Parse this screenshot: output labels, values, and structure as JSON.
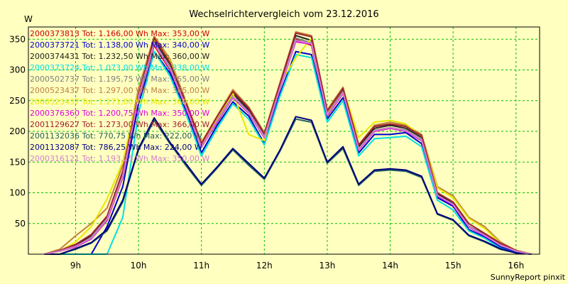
{
  "chart_data": {
    "type": "line",
    "title": "Wechselrichtervergleich vom 23.12.2016",
    "ylabel": "W",
    "xlabel": "",
    "footer": "SunnyReport pinxit",
    "ylim": [
      0,
      370
    ],
    "xlim": [
      8.25,
      16.375
    ],
    "yticks": [
      50,
      100,
      150,
      200,
      250,
      300,
      350
    ],
    "xticks": [
      {
        "value": 9,
        "label": "9h"
      },
      {
        "value": 10,
        "label": "10h"
      },
      {
        "value": 11,
        "label": "11h"
      },
      {
        "value": 12,
        "label": "12h"
      },
      {
        "value": 13,
        "label": "13h"
      },
      {
        "value": 14,
        "label": "14h"
      },
      {
        "value": 15,
        "label": "15h"
      },
      {
        "value": 16,
        "label": "16h"
      }
    ],
    "grid": true,
    "x": [
      8.5,
      8.75,
      9,
      9.25,
      9.5,
      9.75,
      10,
      10.25,
      10.5,
      10.75,
      11,
      11.25,
      11.5,
      11.75,
      12,
      12.25,
      12.5,
      12.75,
      13,
      13.25,
      13.5,
      13.75,
      14,
      14.25,
      14.5,
      14.75,
      15,
      15.25,
      15.5,
      15.75,
      16,
      16.25
    ],
    "series": [
      {
        "name": "2000373813 Tot: 1.166,00 Wh Max: 353,00 W",
        "color": "#cc0000",
        "values": [
          0,
          5,
          12,
          25,
          55,
          125,
          255,
          340,
          300,
          240,
          175,
          215,
          255,
          230,
          190,
          270,
          350,
          340,
          225,
          262,
          170,
          200,
          205,
          200,
          185,
          95,
          80,
          45,
          30,
          15,
          5,
          0
        ]
      },
      {
        "name": "2000373721 Tot: 1.138,00 Wh Max: 340,00 W",
        "color": "#0000cc",
        "values": [
          0,
          0,
          0,
          0,
          45,
          110,
          245,
          330,
          295,
          235,
          165,
          210,
          248,
          225,
          180,
          262,
          330,
          325,
          220,
          255,
          165,
          195,
          195,
          198,
          180,
          92,
          78,
          40,
          28,
          12,
          3,
          0
        ]
      },
      {
        "name": "2000374431 Tot: 1.232,50 Wh Max: 360,00 W",
        "color": "#202020",
        "values": [
          0,
          5,
          14,
          30,
          60,
          130,
          260,
          348,
          310,
          245,
          178,
          220,
          262,
          235,
          195,
          275,
          356,
          348,
          230,
          268,
          175,
          205,
          210,
          205,
          190,
          98,
          82,
          46,
          32,
          16,
          5,
          0
        ]
      },
      {
        "name": "2000373724 Tot: 1.073,00 Wh Max: 338,00 W",
        "color": "#00e0e0",
        "values": [
          0,
          0,
          0,
          0,
          0,
          60,
          230,
          330,
          290,
          230,
          160,
          205,
          245,
          220,
          178,
          258,
          325,
          320,
          215,
          250,
          160,
          188,
          190,
          192,
          175,
          88,
          72,
          38,
          26,
          10,
          2,
          0
        ]
      },
      {
        "name": "2000502737 Tot: 1.195,75 Wh Max: 355,00 W",
        "color": "#808080",
        "values": [
          0,
          5,
          12,
          28,
          58,
          128,
          258,
          345,
          305,
          242,
          176,
          218,
          258,
          232,
          192,
          272,
          352,
          344,
          228,
          265,
          172,
          202,
          206,
          202,
          187,
          96,
          80,
          46,
          31,
          15,
          5,
          0
        ]
      },
      {
        "name": "2000523437 Tot: 1.297,00 Wh Max: 365,00 W",
        "color": "#c08040",
        "values": [
          0,
          8,
          30,
          50,
          75,
          145,
          270,
          355,
          318,
          250,
          182,
          225,
          268,
          240,
          198,
          280,
          362,
          356,
          235,
          272,
          178,
          210,
          215,
          210,
          195,
          110,
          95,
          60,
          45,
          20,
          6,
          0
        ]
      },
      {
        "name": "2000523437 Tot: 1.271,00 Wh Max: 360,00 W",
        "color": "#e8e800",
        "values": [
          0,
          5,
          20,
          45,
          90,
          150,
          265,
          350,
          315,
          248,
          180,
          222,
          262,
          195,
          185,
          278,
          320,
          352,
          232,
          270,
          190,
          215,
          218,
          212,
          192,
          108,
          92,
          58,
          42,
          18,
          5,
          0
        ]
      },
      {
        "name": "2000376360 Tot: 1.200,75 Wh Max: 350,00 W",
        "color": "#e000e0",
        "values": [
          0,
          5,
          12,
          25,
          56,
          126,
          256,
          342,
          302,
          240,
          174,
          216,
          255,
          230,
          190,
          270,
          346,
          342,
          226,
          262,
          170,
          200,
          205,
          200,
          185,
          95,
          80,
          44,
          30,
          15,
          5,
          0
        ]
      },
      {
        "name": "2001129627 Tot: 1.273,00 Wh Max: 366,00 W",
        "color": "#a02030",
        "values": [
          0,
          6,
          16,
          32,
          62,
          135,
          262,
          352,
          312,
          248,
          180,
          224,
          265,
          238,
          196,
          278,
          360,
          354,
          233,
          270,
          178,
          208,
          212,
          208,
          193,
          100,
          85,
          50,
          34,
          18,
          6,
          0
        ]
      },
      {
        "name": "2001132036 Tot: 770,75 Wh Max: 222,00 W",
        "color": "#206060",
        "values": [
          0,
          0,
          8,
          18,
          38,
          85,
          170,
          218,
          180,
          145,
          112,
          140,
          170,
          145,
          122,
          168,
          220,
          215,
          148,
          172,
          112,
          135,
          137,
          135,
          125,
          65,
          55,
          30,
          20,
          8,
          2,
          0
        ]
      },
      {
        "name": "2001132087 Tot: 786,25 Wh Max: 224,00 W",
        "color": "#000080",
        "values": [
          0,
          0,
          9,
          19,
          40,
          88,
          172,
          222,
          182,
          148,
          114,
          142,
          172,
          148,
          124,
          170,
          224,
          218,
          150,
          175,
          114,
          137,
          139,
          137,
          127,
          66,
          56,
          31,
          21,
          9,
          2,
          0
        ]
      },
      {
        "name": "2000316121 Tot: 1.193,25 Wh Max: 350,00 W",
        "color": "#d080d0",
        "values": [
          0,
          5,
          13,
          26,
          57,
          127,
          257,
          343,
          303,
          241,
          175,
          217,
          256,
          231,
          191,
          271,
          348,
          343,
          227,
          263,
          171,
          201,
          206,
          201,
          186,
          96,
          81,
          45,
          31,
          15,
          5,
          0
        ]
      }
    ]
  }
}
